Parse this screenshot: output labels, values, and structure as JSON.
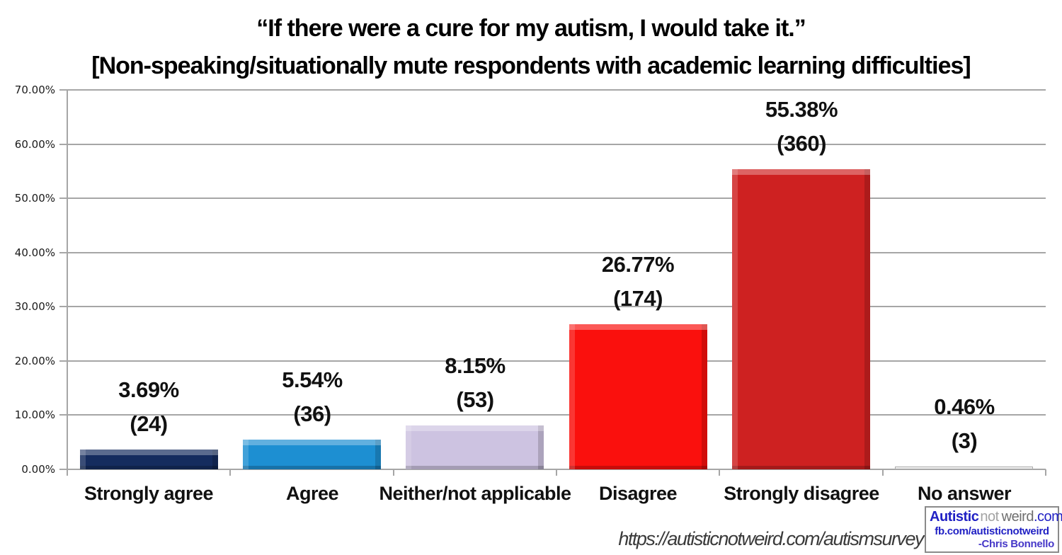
{
  "title": {
    "line1": "“If there were a cure for my autism, I would take it.”",
    "line2": "[Non-speaking/situationally mute respondents with academic learning difficulties]"
  },
  "chart_data": {
    "type": "bar",
    "title": "“If there were a cure for my autism, I would take it.” [Non-speaking/situationally mute respondents with academic learning difficulties]",
    "categories": [
      "Strongly agree",
      "Agree",
      "Neither/not applicable",
      "Disagree",
      "Strongly disagree",
      "No answer"
    ],
    "values": [
      3.69,
      5.54,
      8.15,
      26.77,
      55.38,
      0.46
    ],
    "counts": [
      24,
      36,
      53,
      174,
      360,
      3
    ],
    "value_labels": [
      "3.69%",
      "5.54%",
      "8.15%",
      "26.77%",
      "55.38%",
      "0.46%"
    ],
    "count_labels": [
      "(24)",
      "(36)",
      "(53)",
      "(174)",
      "(360)",
      "(3)"
    ],
    "bar_colors": [
      "#152C5E",
      "#1D8FD2",
      "#CDC3E1",
      "#FA100D",
      "#CE2121",
      "#FFFFFF"
    ],
    "xlabel": "",
    "ylabel": "",
    "ylim": [
      0,
      70
    ],
    "yticks": [
      0,
      10,
      20,
      30,
      40,
      50,
      60,
      70
    ],
    "ytick_labels": [
      "0.00%",
      "10.00%",
      "20.00%",
      "30.00%",
      "40.00%",
      "50.00%",
      "60.00%",
      "70.00%"
    ],
    "grid": true,
    "gridline_color": "#A6A6A6",
    "legend": "none"
  },
  "footer": {
    "url": "https://autisticnotweird.com/autismsurvey"
  },
  "logo": {
    "word_autistic": "Autistic",
    "word_not": "not",
    "word_weird": "weird",
    "word_com": ".com",
    "facebook": "fb.com/autisticnotweird",
    "author": "-Chris Bonnello",
    "brand_blue": "#2121C4"
  }
}
